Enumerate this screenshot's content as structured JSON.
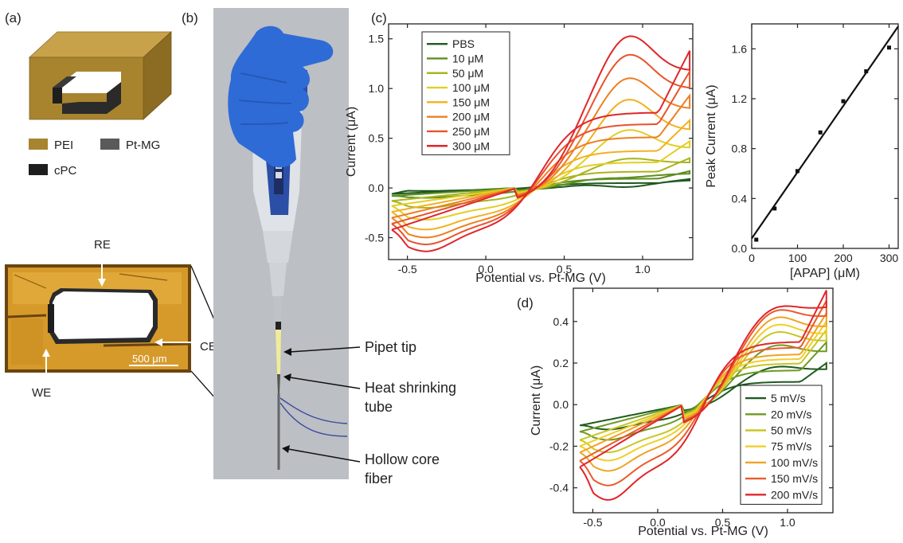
{
  "panels": {
    "a": {
      "label": "(a)",
      "legend": [
        {
          "name": "PEI",
          "color": "#a8842e"
        },
        {
          "name": "Pt-MG",
          "color": "#5a5a5a"
        },
        {
          "name": "cPC",
          "color": "#1e1e1e"
        }
      ],
      "micrograph": {
        "labels": {
          "re": "RE",
          "ce": "CE",
          "we": "WE"
        },
        "scalebar": "500 μm"
      }
    },
    "b": {
      "label": "(b)",
      "annotations": {
        "pipet_tip": "Pipet tip",
        "heat1": "Heat shrinking",
        "heat2": "tube",
        "hollow1": "Hollow core",
        "hollow2": "fiber"
      }
    },
    "c": {
      "label": "(c)"
    },
    "d": {
      "label": "(d)"
    }
  },
  "chart_data": [
    {
      "id": "c_cv",
      "type": "line",
      "xlabel": "Potential vs. Pt-MG (V)",
      "ylabel": "Current (μA)",
      "xlim": [
        -0.62,
        1.32
      ],
      "ylim": [
        -0.72,
        1.65
      ],
      "xticks": [
        -0.5,
        0.0,
        0.5,
        1.0
      ],
      "xtick_labels": [
        "-0.5",
        "0.0",
        "0.5",
        "1.0"
      ],
      "yticks": [
        -0.5,
        0.0,
        0.5,
        1.0,
        1.5
      ],
      "ytick_labels": [
        "-0.5",
        "0.0",
        "0.5",
        "1.0",
        "1.5"
      ],
      "legend_position": "top-left",
      "series": [
        {
          "name": "PBS",
          "color": "#1f5a1f",
          "x_start": -0.6,
          "x_end": 1.3,
          "i_start": -0.06,
          "i_end": 0.09,
          "peak_forward": 0.02,
          "peak_reverse": -0.03
        },
        {
          "name": "10 μM",
          "color": "#5e8f1f",
          "x_start": -0.6,
          "x_end": 1.3,
          "i_start": -0.08,
          "i_end": 0.17,
          "peak_forward": 0.12,
          "peak_reverse": -0.1
        },
        {
          "name": "50 μM",
          "color": "#a9b51d",
          "x_start": -0.6,
          "x_end": 1.3,
          "i_start": -0.13,
          "i_end": 0.3,
          "peak_forward": 0.32,
          "peak_reverse": -0.2
        },
        {
          "name": "100 μM",
          "color": "#e2cf24",
          "x_start": -0.6,
          "x_end": 1.3,
          "i_start": -0.18,
          "i_end": 0.47,
          "peak_forward": 0.62,
          "peak_reverse": -0.32
        },
        {
          "name": "150 μM",
          "color": "#f2b021",
          "x_start": -0.6,
          "x_end": 1.3,
          "i_start": -0.24,
          "i_end": 0.68,
          "peak_forward": 0.94,
          "peak_reverse": -0.42
        },
        {
          "name": "200 μM",
          "color": "#ee7f22",
          "x_start": -0.6,
          "x_end": 1.3,
          "i_start": -0.3,
          "i_end": 0.93,
          "peak_forward": 1.17,
          "peak_reverse": -0.5
        },
        {
          "name": "250 μM",
          "color": "#e8532c",
          "x_start": -0.6,
          "x_end": 1.3,
          "i_start": -0.36,
          "i_end": 1.17,
          "peak_forward": 1.42,
          "peak_reverse": -0.57
        },
        {
          "name": "300 μM",
          "color": "#e0262b",
          "x_start": -0.6,
          "x_end": 1.3,
          "i_start": -0.42,
          "i_end": 1.38,
          "peak_forward": 1.62,
          "peak_reverse": -0.64
        }
      ]
    },
    {
      "id": "c_calib",
      "type": "scatter",
      "xlabel": "[APAP] (μM)",
      "ylabel": "Peak Current (μA)",
      "xlim": [
        0,
        320
      ],
      "ylim": [
        0,
        1.8
      ],
      "xticks": [
        0,
        100,
        200,
        300
      ],
      "xtick_labels": [
        "0",
        "100",
        "200",
        "300"
      ],
      "yticks": [
        0,
        0.4,
        0.8,
        1.2,
        1.6
      ],
      "ytick_labels": [
        "0.0",
        "0.4",
        "0.8",
        "1.2",
        "1.6"
      ],
      "x": [
        10,
        50,
        100,
        150,
        200,
        250,
        300
      ],
      "y": [
        0.07,
        0.32,
        0.62,
        0.93,
        1.18,
        1.42,
        1.61
      ],
      "fit": {
        "x": [
          0,
          320
        ],
        "y": [
          0.08,
          1.78
        ]
      }
    },
    {
      "id": "d_cv",
      "type": "line",
      "xlabel": "Potential vs. Pt-MG (V)",
      "ylabel": "Current (μA)",
      "xlim": [
        -0.65,
        1.35
      ],
      "ylim": [
        -0.52,
        0.56
      ],
      "xticks": [
        -0.5,
        0.0,
        0.5,
        1.0
      ],
      "xtick_labels": [
        "-0.5",
        "0.0",
        "0.5",
        "1.0"
      ],
      "yticks": [
        -0.4,
        -0.2,
        0.0,
        0.2,
        0.4
      ],
      "ytick_labels": [
        "-0.4",
        "-0.2",
        "0.0",
        "0.2",
        "0.4"
      ],
      "legend_position": "bottom-right",
      "series": [
        {
          "name": "5 mV/s",
          "color": "#1f5a1f",
          "x_start": -0.6,
          "x_end": 1.3,
          "i_start": -0.1,
          "i_end": 0.2,
          "peak_forward": 0.2,
          "peak_reverse": -0.12
        },
        {
          "name": "20 mV/s",
          "color": "#6e9a22",
          "x_start": -0.6,
          "x_end": 1.3,
          "i_start": -0.13,
          "i_end": 0.3,
          "peak_forward": 0.31,
          "peak_reverse": -0.17
        },
        {
          "name": "50 mV/s",
          "color": "#c8c726",
          "x_start": -0.6,
          "x_end": 1.3,
          "i_start": -0.17,
          "i_end": 0.36,
          "peak_forward": 0.38,
          "peak_reverse": -0.23
        },
        {
          "name": "75 mV/s",
          "color": "#f0cf2a",
          "x_start": -0.6,
          "x_end": 1.3,
          "i_start": -0.2,
          "i_end": 0.4,
          "peak_forward": 0.42,
          "peak_reverse": -0.27
        },
        {
          "name": "100 mV/s",
          "color": "#f0a324",
          "x_start": -0.6,
          "x_end": 1.3,
          "i_start": -0.23,
          "i_end": 0.44,
          "peak_forward": 0.46,
          "peak_reverse": -0.32
        },
        {
          "name": "150 mV/s",
          "color": "#ea5b2b",
          "x_start": -0.6,
          "x_end": 1.3,
          "i_start": -0.27,
          "i_end": 0.5,
          "peak_forward": 0.5,
          "peak_reverse": -0.39
        },
        {
          "name": "200 mV/s",
          "color": "#e0262b",
          "x_start": -0.6,
          "x_end": 1.3,
          "i_start": -0.3,
          "i_end": 0.55,
          "peak_forward": 0.52,
          "peak_reverse": -0.46
        }
      ]
    }
  ]
}
